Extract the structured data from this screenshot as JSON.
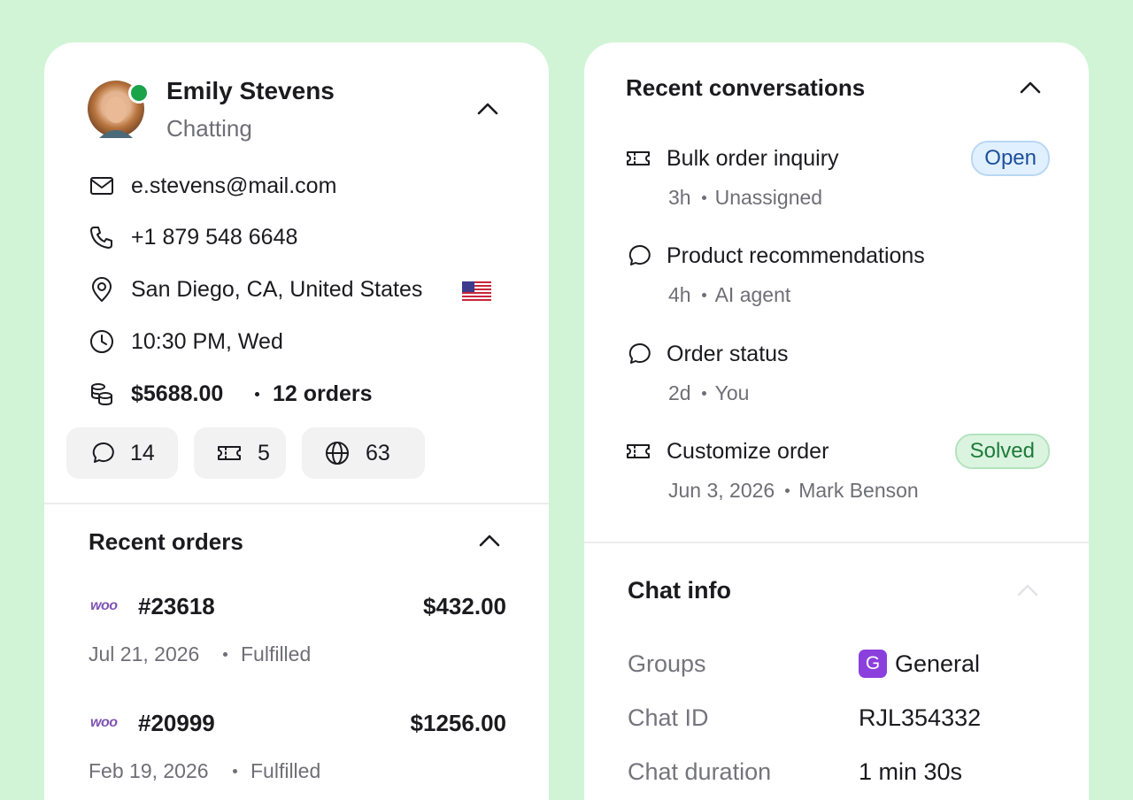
{
  "customer": {
    "name": "Emily Stevens",
    "status": "Chatting",
    "email": "e.stevens@mail.com",
    "phone": "+1 879 548 6648",
    "location": "San Diego, CA, United States",
    "local_time": "10:30 PM, Wed",
    "total_spent": "$5688.00",
    "orders": "12 orders",
    "stats": {
      "chats": 14,
      "tickets": 5,
      "visits": 63
    }
  },
  "recent_orders": {
    "title": "Recent orders",
    "items": [
      {
        "store": "woo",
        "id": "#23618",
        "amount": "$432.00",
        "date": "Jul 21, 2026",
        "status": "Fulfilled"
      },
      {
        "store": "woo",
        "id": "#20999",
        "amount": "$1256.00",
        "date": "Feb 19, 2026",
        "status": "Fulfilled"
      }
    ]
  },
  "recent_conversations": {
    "title": "Recent conversations",
    "items": [
      {
        "title": "Bulk order inquiry",
        "age": "3h",
        "assignee": "Unassigned",
        "badge": "Open"
      },
      {
        "title": "Product recommendations",
        "age": "4h",
        "assignee": "AI agent"
      },
      {
        "title": "Order status",
        "age": "2d",
        "assignee": "You"
      },
      {
        "title": "Customize order",
        "age": "Jun 3, 2026",
        "assignee": "Mark Benson",
        "badge": "Solved"
      }
    ]
  },
  "chat_info": {
    "title": "Chat info",
    "rows": [
      {
        "label": "Groups",
        "icon": "G",
        "value": "General"
      },
      {
        "label": "Chat ID",
        "value": "RJL354332"
      },
      {
        "label": "Chat duration",
        "value": "1 min 30s"
      }
    ]
  }
}
